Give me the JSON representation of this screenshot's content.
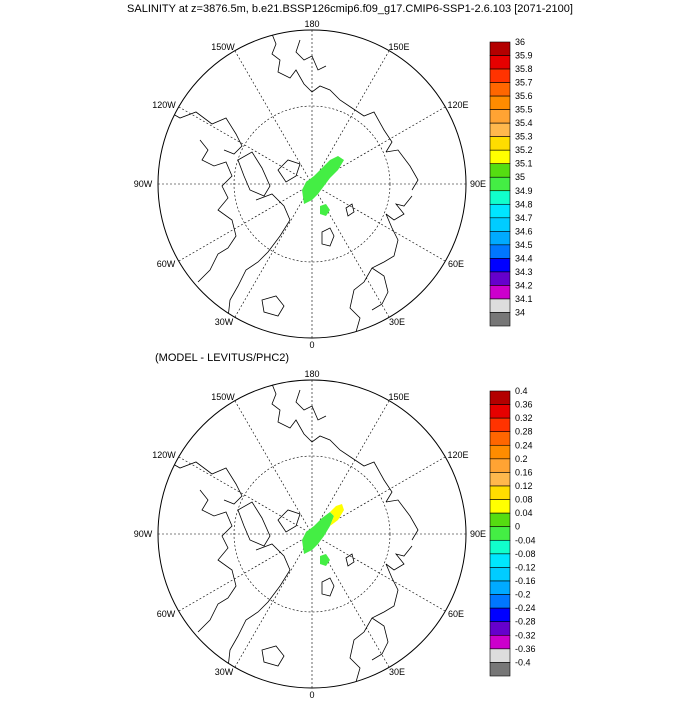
{
  "top_panel": {
    "title": "SALINITY at z=3876.5m, b.e21.BSSP126cmip6.f09_g17.CMIP6-SSP1-2.6.103 [2071-2100]",
    "lon_labels": [
      "180",
      "150E",
      "120E",
      "90E",
      "60E",
      "30E",
      "0",
      "30W",
      "60W",
      "90W",
      "120W",
      "150W"
    ],
    "colorbar": {
      "labels": [
        "36",
        "35.9",
        "35.8",
        "35.7",
        "35.6",
        "35.5",
        "35.4",
        "35.3",
        "35.2",
        "35.1",
        "35",
        "34.9",
        "34.8",
        "34.7",
        "34.6",
        "34.5",
        "34.4",
        "34.3",
        "34.2",
        "34.1",
        "34"
      ],
      "colors": [
        "#b30000",
        "#e60000",
        "#ff3300",
        "#ff6600",
        "#ff8c00",
        "#ffa333",
        "#ffb84d",
        "#ffdd00",
        "#ffff00",
        "#55dd11",
        "#44ee44",
        "#11ffcc",
        "#00e6ff",
        "#00ccff",
        "#00aaff",
        "#0077ff",
        "#0000ff",
        "#6600cc",
        "#cc00cc",
        "#dddddd",
        "#777777"
      ]
    }
  },
  "bottom_panel": {
    "title": "(MODEL - LEVITUS/PHC2)",
    "lon_labels": [
      "180",
      "150E",
      "120E",
      "90E",
      "60E",
      "30E",
      "0",
      "30W",
      "60W",
      "90W",
      "120W",
      "150W"
    ],
    "colorbar": {
      "labels": [
        "0.4",
        "0.36",
        "0.32",
        "0.28",
        "0.24",
        "0.2",
        "0.16",
        "0.12",
        "0.08",
        "0.04",
        "0",
        "-0.04",
        "-0.08",
        "-0.12",
        "-0.16",
        "-0.2",
        "-0.24",
        "-0.28",
        "-0.32",
        "-0.36",
        "-0.4"
      ],
      "colors": [
        "#b30000",
        "#e60000",
        "#ff3300",
        "#ff6600",
        "#ff8c00",
        "#ffa333",
        "#ffb84d",
        "#ffdd00",
        "#ffff00",
        "#55dd11",
        "#44ee44",
        "#11ffcc",
        "#00e6ff",
        "#00ccff",
        "#00aaff",
        "#0077ff",
        "#0000ff",
        "#6600cc",
        "#cc00cc",
        "#dddddd",
        "#777777"
      ]
    }
  }
}
